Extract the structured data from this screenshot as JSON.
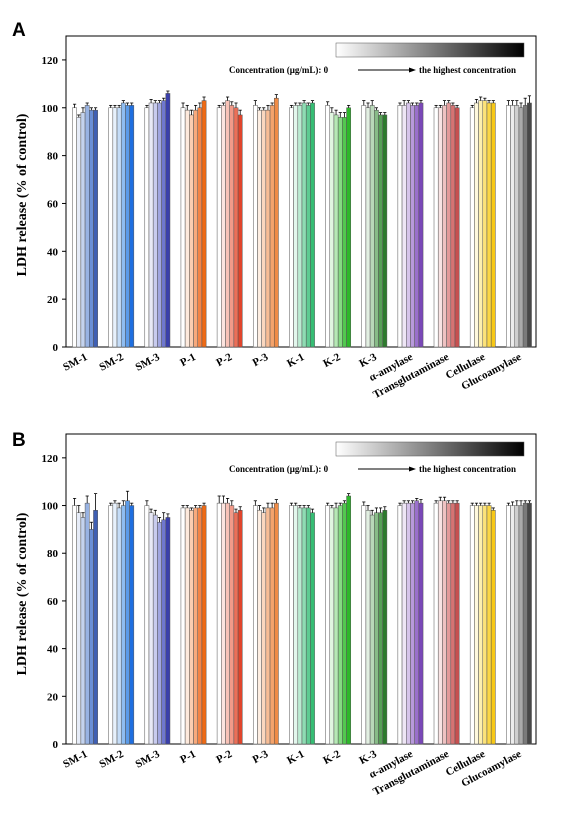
{
  "chart_data": [
    {
      "type": "bar",
      "panel": "A",
      "ylabel": "LDH release (% of control)",
      "ylim": [
        0,
        130
      ],
      "yticks": [
        0,
        20,
        40,
        60,
        80,
        100,
        120
      ],
      "categories": [
        "SM-1",
        "SM-2",
        "SM-3",
        "P-1",
        "P-2",
        "P-3",
        "K-1",
        "K-2",
        "K-3",
        "α-amylase",
        "Transglutaminase",
        "Cellulase",
        "Glucoamylase"
      ],
      "groups": [
        {
          "values": [
            100,
            96,
            98,
            101,
            99,
            99
          ],
          "errors": [
            1.5,
            1,
            2,
            1,
            1,
            1
          ]
        },
        {
          "values": [
            100,
            100,
            100,
            102,
            101,
            101
          ],
          "errors": [
            1,
            1,
            1,
            1,
            1,
            1
          ]
        },
        {
          "values": [
            100,
            102,
            102,
            102,
            103,
            106
          ],
          "errors": [
            1,
            1.5,
            1,
            1,
            1,
            1
          ]
        },
        {
          "values": [
            100,
            99,
            97,
            99,
            100,
            103
          ],
          "errors": [
            2,
            2,
            2,
            2,
            2,
            1.5
          ]
        },
        {
          "values": [
            100,
            101,
            103,
            101,
            100,
            97
          ],
          "errors": [
            1,
            1,
            1.5,
            1.5,
            2,
            2
          ]
        },
        {
          "values": [
            101,
            99,
            99,
            99,
            101,
            104
          ],
          "errors": [
            2,
            1,
            1,
            2,
            1,
            1.5
          ]
        },
        {
          "values": [
            100,
            101,
            101,
            102,
            101,
            102
          ],
          "errors": [
            1,
            1,
            1,
            1,
            1,
            1
          ]
        },
        {
          "values": [
            101,
            98,
            97,
            96,
            96,
            100
          ],
          "errors": [
            1.5,
            2,
            2,
            2,
            2,
            1
          ]
        },
        {
          "values": [
            101,
            100,
            101,
            99,
            97,
            97
          ],
          "errors": [
            2,
            2,
            2,
            1,
            1,
            1
          ]
        },
        {
          "values": [
            101,
            101,
            102,
            101,
            101,
            102
          ],
          "errors": [
            1,
            2,
            1,
            1,
            1,
            1
          ]
        },
        {
          "values": [
            100,
            100,
            101,
            102,
            101,
            100
          ],
          "errors": [
            1,
            1,
            2,
            1,
            1,
            1
          ]
        },
        {
          "values": [
            100,
            102,
            103,
            103,
            102,
            102
          ],
          "errors": [
            1,
            1.5,
            1.5,
            1,
            1,
            1
          ]
        },
        {
          "values": [
            101,
            101,
            101,
            100,
            101,
            102
          ],
          "errors": [
            2,
            2,
            2,
            2,
            3,
            3
          ]
        }
      ],
      "legend": {
        "text_left": "Concentration (μg/mL):  0",
        "text_right": "the highest concentration",
        "placement": "top-right"
      },
      "colors": [
        [
          "#ffffff",
          "#e6ecf8",
          "#c4d3ee",
          "#98b3e3",
          "#6a8fd6",
          "#3f5fb3"
        ],
        [
          "#ffffff",
          "#e7f1fc",
          "#c4dcf7",
          "#8fbdf0",
          "#5b9be9",
          "#1f6fe0"
        ],
        [
          "#ffffff",
          "#e8e9f6",
          "#c8cbee",
          "#a1a6e0",
          "#6f77cf",
          "#3a3fab"
        ],
        [
          "#ffffff",
          "#fde9dc",
          "#fbcdb1",
          "#f8a97c",
          "#f48446",
          "#ee6a15"
        ],
        [
          "#ffffff",
          "#fce4df",
          "#f8c2b7",
          "#f29a89",
          "#eb6f58",
          "#e0452c"
        ],
        [
          "#ffffff",
          "#fdeee2",
          "#fad7bf",
          "#f7bd96",
          "#f4a36c",
          "#f08b45"
        ],
        [
          "#ffffff",
          "#e3f7ed",
          "#bcebd2",
          "#8edcb3",
          "#5ecb92",
          "#36bd74"
        ],
        [
          "#ffffff",
          "#e1f6e1",
          "#b6e9b5",
          "#84d982",
          "#52c84f",
          "#2db82a"
        ],
        [
          "#ffffff",
          "#e2efe2",
          "#b9d8b9",
          "#88bc88",
          "#579f57",
          "#2d7a2d"
        ],
        [
          "#ffffff",
          "#eee6f5",
          "#d6c4ea",
          "#b89adb",
          "#9a70cc",
          "#7a48b8"
        ],
        [
          "#ffffff",
          "#f8e3e3",
          "#efc2c2",
          "#e39a9a",
          "#d67373",
          "#c65050"
        ],
        [
          "#ffffff",
          "#fef8dc",
          "#fdefae",
          "#fce37a",
          "#fbd746",
          "#f7c816"
        ],
        [
          "#ffffff",
          "#ececec",
          "#cfcfcf",
          "#aaaaaa",
          "#7a7a7a",
          "#474747"
        ]
      ]
    },
    {
      "type": "bar",
      "panel": "B",
      "ylabel": "LDH release (% of control)",
      "ylim": [
        0,
        130
      ],
      "yticks": [
        0,
        20,
        40,
        60,
        80,
        100,
        120
      ],
      "categories": [
        "SM-1",
        "SM-2",
        "SM-3",
        "P-1",
        "P-2",
        "P-3",
        "K-1",
        "K-2",
        "K-3",
        "α-amylase",
        "Transglutaminase",
        "Cellulase",
        "Glucoamylase"
      ],
      "groups": [
        {
          "values": [
            100,
            97,
            95,
            101,
            90,
            98
          ],
          "errors": [
            3,
            3,
            2,
            3,
            3,
            7
          ]
        },
        {
          "values": [
            100,
            101,
            99,
            100,
            102,
            100
          ],
          "errors": [
            1,
            1,
            2,
            2,
            4,
            1
          ]
        },
        {
          "values": [
            100,
            97,
            96,
            93,
            94,
            95
          ],
          "errors": [
            2,
            1.5,
            2,
            2,
            3,
            1.5
          ]
        },
        {
          "values": [
            99,
            99,
            98,
            99,
            99,
            100
          ],
          "errors": [
            1,
            1,
            1,
            1,
            1,
            1
          ]
        },
        {
          "values": [
            101,
            101,
            101,
            100,
            97,
            98
          ],
          "errors": [
            3,
            3,
            2,
            2,
            1.5,
            1.5
          ]
        },
        {
          "values": [
            100,
            98,
            97,
            99,
            99,
            101
          ],
          "errors": [
            2,
            2,
            2,
            2,
            2,
            1.5
          ]
        },
        {
          "values": [
            100,
            100,
            99,
            99,
            99,
            97
          ],
          "errors": [
            1,
            1,
            1,
            1,
            1,
            1.5
          ]
        },
        {
          "values": [
            100,
            99,
            99,
            100,
            101,
            104
          ],
          "errors": [
            1,
            1,
            2,
            1,
            1,
            1
          ]
        },
        {
          "values": [
            100,
            98,
            96,
            97,
            97,
            98
          ],
          "errors": [
            1.5,
            2,
            2,
            2,
            2,
            1.5
          ]
        },
        {
          "values": [
            100,
            101,
            101,
            101,
            102,
            101
          ],
          "errors": [
            1,
            1,
            1,
            1,
            1,
            1.5
          ]
        },
        {
          "values": [
            101,
            102,
            102,
            101,
            101,
            101
          ],
          "errors": [
            1,
            1.5,
            1.5,
            1,
            1,
            1
          ]
        },
        {
          "values": [
            100,
            100,
            100,
            100,
            100,
            98
          ],
          "errors": [
            1,
            1,
            1,
            1,
            1,
            1
          ]
        },
        {
          "values": [
            100,
            100,
            100,
            100,
            101,
            101
          ],
          "errors": [
            1,
            1.5,
            2,
            2,
            1,
            1
          ]
        }
      ],
      "legend": {
        "text_left": "Concentration (μg/mL):  0",
        "text_right": "the highest concentration",
        "placement": "top-right"
      }
    }
  ]
}
